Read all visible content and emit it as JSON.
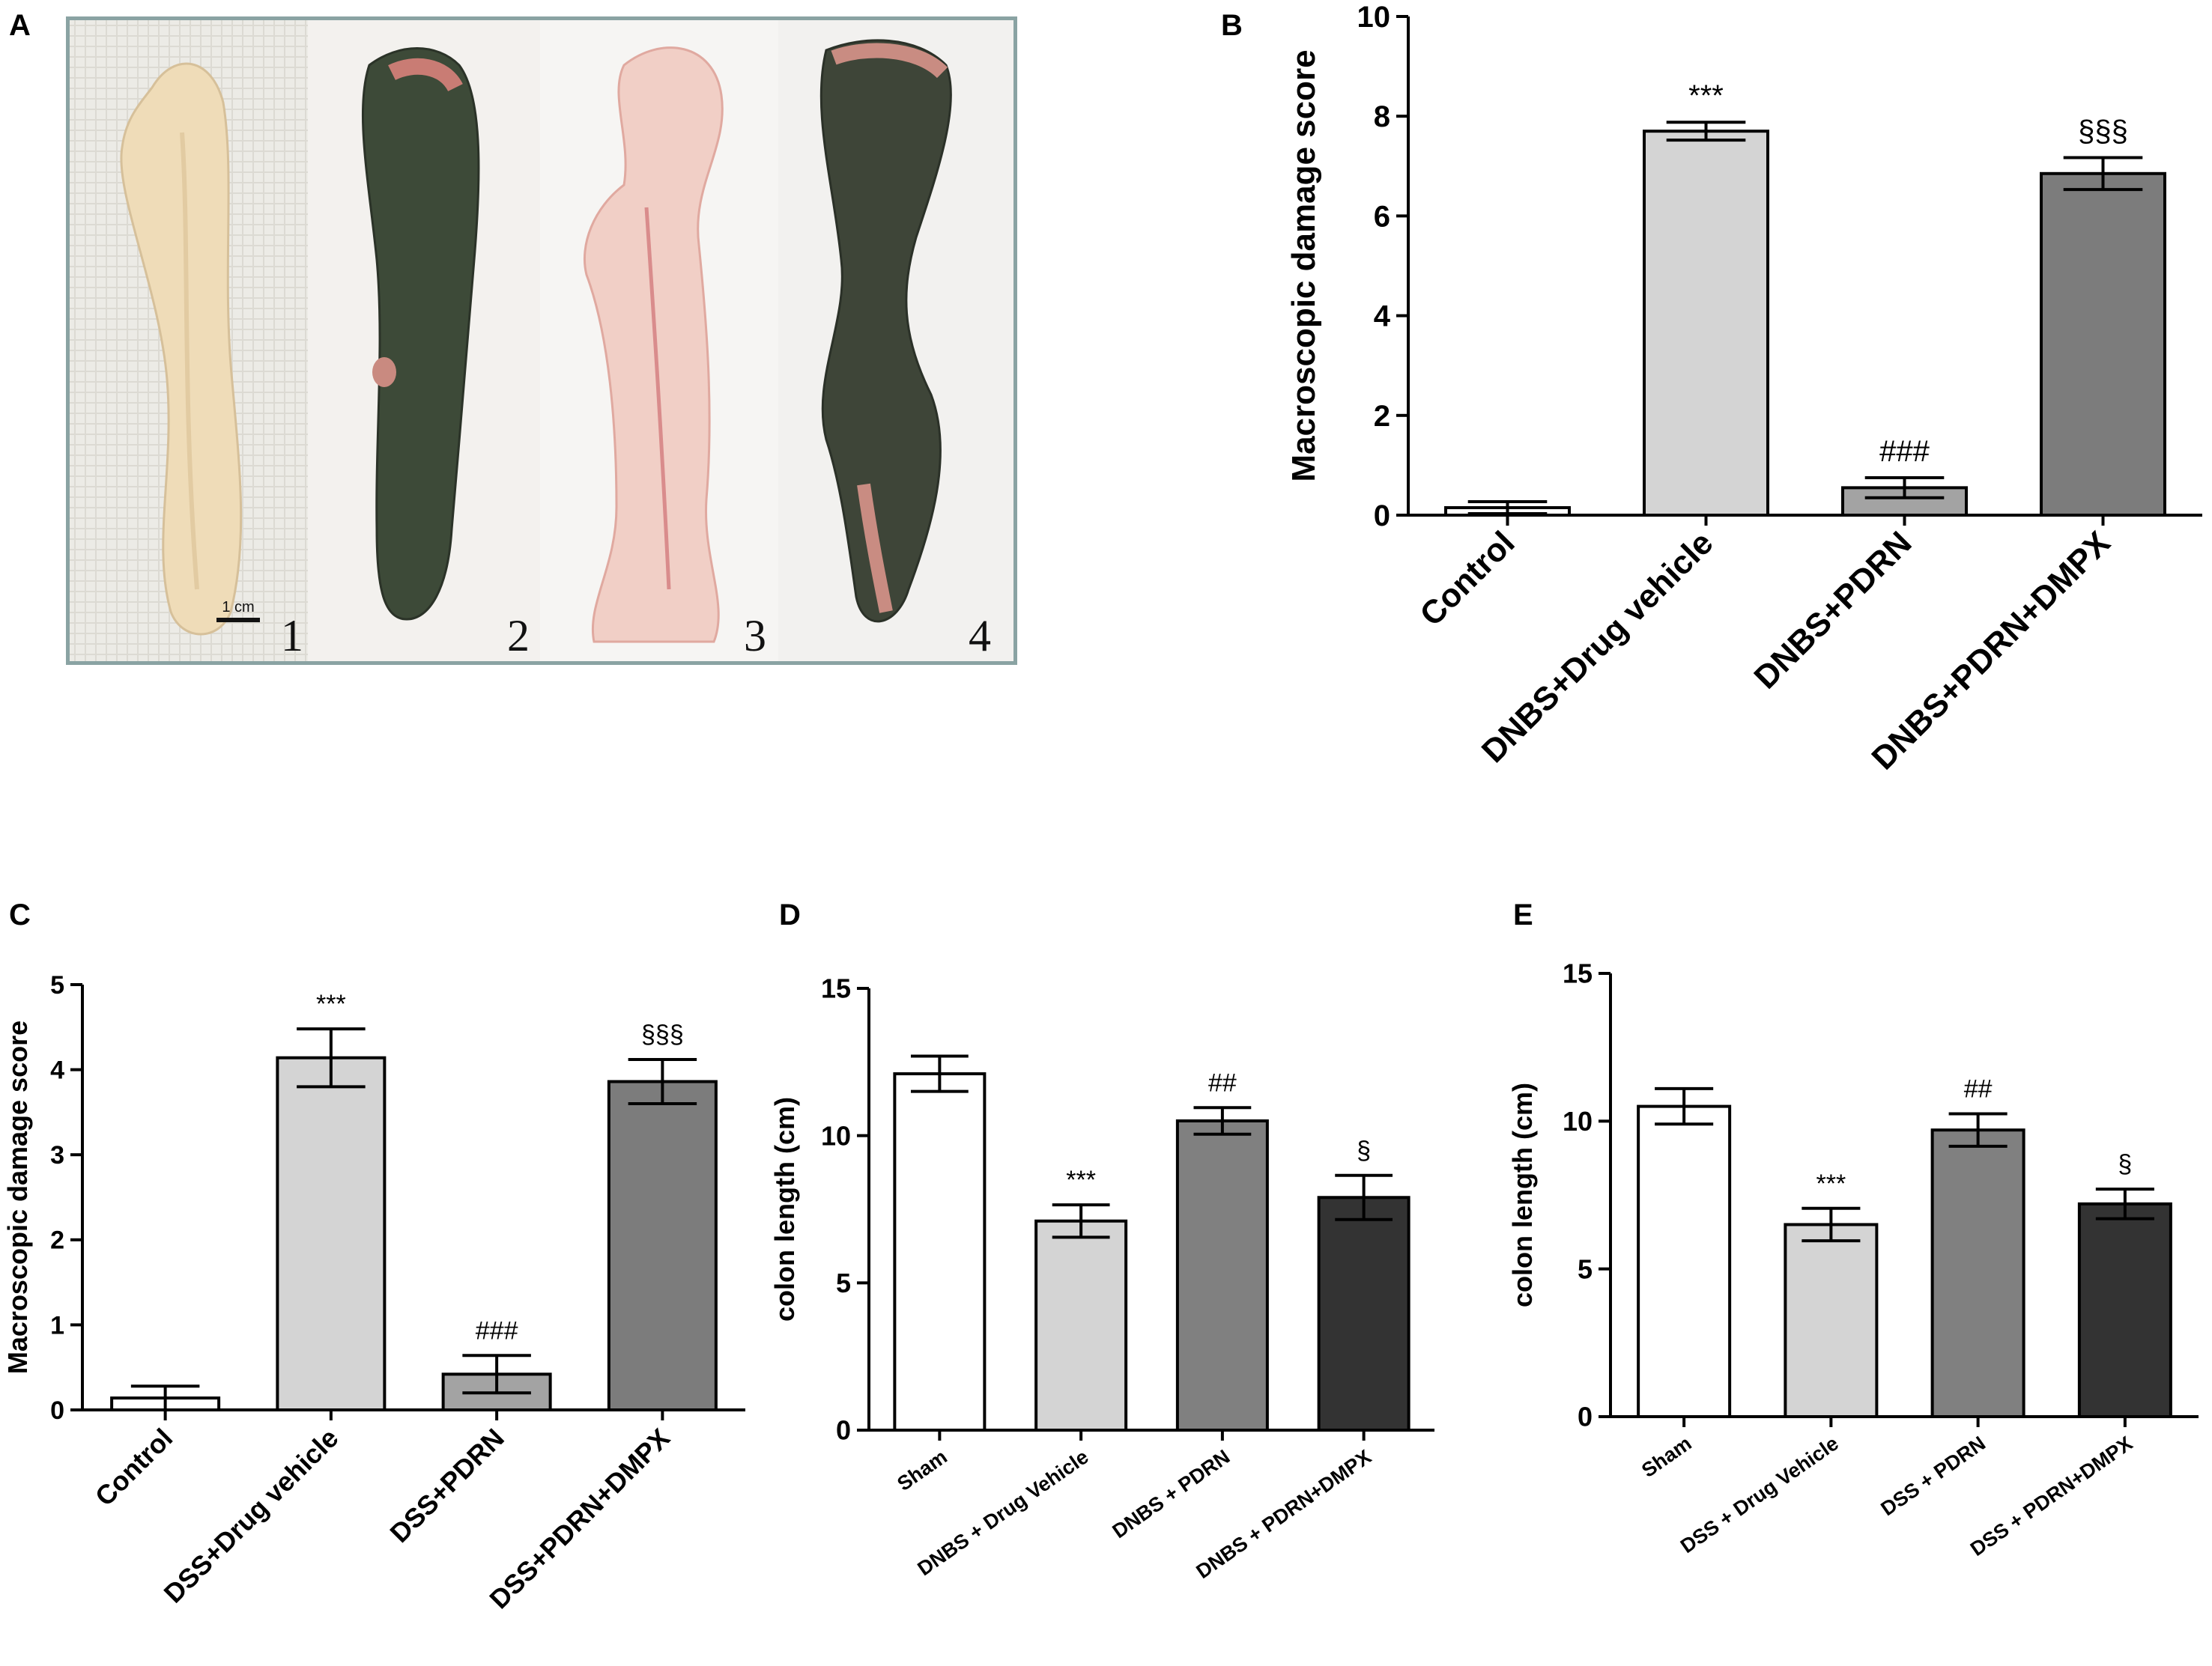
{
  "panel_letters": {
    "a": "A",
    "b": "B",
    "c": "C",
    "d": "D",
    "e": "E"
  },
  "photo": {
    "scale_label": "1 cm",
    "specimen_numbers": [
      "1",
      "2",
      "3",
      "4"
    ]
  },
  "chart_data": [
    {
      "id": "B",
      "type": "bar",
      "title": "",
      "xlabel": "",
      "ylabel": "Macroscopic damage score",
      "ylim": [
        0,
        10
      ],
      "yticks": [
        0,
        2,
        4,
        6,
        8,
        10
      ],
      "categories": [
        "Control",
        "DNBS+Drug vehicle",
        "DNBS+PDRN",
        "DNBS+PDRN+DMPX"
      ],
      "values": [
        0.15,
        7.7,
        0.55,
        6.85
      ],
      "errors": [
        0.12,
        0.18,
        0.2,
        0.32
      ],
      "annotations": [
        "",
        "***",
        "###",
        "§§§"
      ],
      "colors": [
        "#ffffff",
        "#d4d4d4",
        "#a3a3a3",
        "#7c7c7c"
      ]
    },
    {
      "id": "C",
      "type": "bar",
      "title": "",
      "xlabel": "",
      "ylabel": "Macroscopic damage score",
      "ylim": [
        0,
        5
      ],
      "yticks": [
        0,
        1,
        2,
        3,
        4,
        5
      ],
      "categories": [
        "Control",
        "DSS+Drug vehicle",
        "DSS+PDRN",
        "DSS+PDRN+DMPX"
      ],
      "values": [
        0.14,
        4.14,
        0.42,
        3.86
      ],
      "errors": [
        0.14,
        0.34,
        0.22,
        0.26
      ],
      "annotations": [
        "",
        "***",
        "###",
        "§§§"
      ],
      "colors": [
        "#ffffff",
        "#d4d4d4",
        "#a3a3a3",
        "#7c7c7c"
      ]
    },
    {
      "id": "D",
      "type": "bar",
      "title": "",
      "xlabel": "",
      "ylabel": "colon length (cm)",
      "ylim": [
        0,
        15
      ],
      "yticks": [
        0,
        5,
        10,
        15
      ],
      "categories": [
        "Sham",
        "DNBS + Drug Vehicle",
        "DNBS + PDRN",
        "DNBS + PDRN+DMPX"
      ],
      "values": [
        12.1,
        7.1,
        10.5,
        7.9
      ],
      "errors": [
        0.6,
        0.55,
        0.45,
        0.75
      ],
      "annotations": [
        "",
        "***",
        "##",
        "§"
      ],
      "colors": [
        "#ffffff",
        "#d4d4d4",
        "#808080",
        "#333333"
      ]
    },
    {
      "id": "E",
      "type": "bar",
      "title": "",
      "xlabel": "",
      "ylabel": "colon length (cm)",
      "ylim": [
        0,
        15
      ],
      "yticks": [
        0,
        5,
        10,
        15
      ],
      "categories": [
        "Sham",
        "DSS + Drug Vehicle",
        "DSS + PDRN",
        "DSS + PDRN+DMPX"
      ],
      "values": [
        10.5,
        6.5,
        9.7,
        7.2
      ],
      "errors": [
        0.6,
        0.55,
        0.55,
        0.5
      ],
      "annotations": [
        "",
        "***",
        "##",
        "§"
      ],
      "colors": [
        "#ffffff",
        "#d4d4d4",
        "#808080",
        "#333333"
      ]
    }
  ]
}
